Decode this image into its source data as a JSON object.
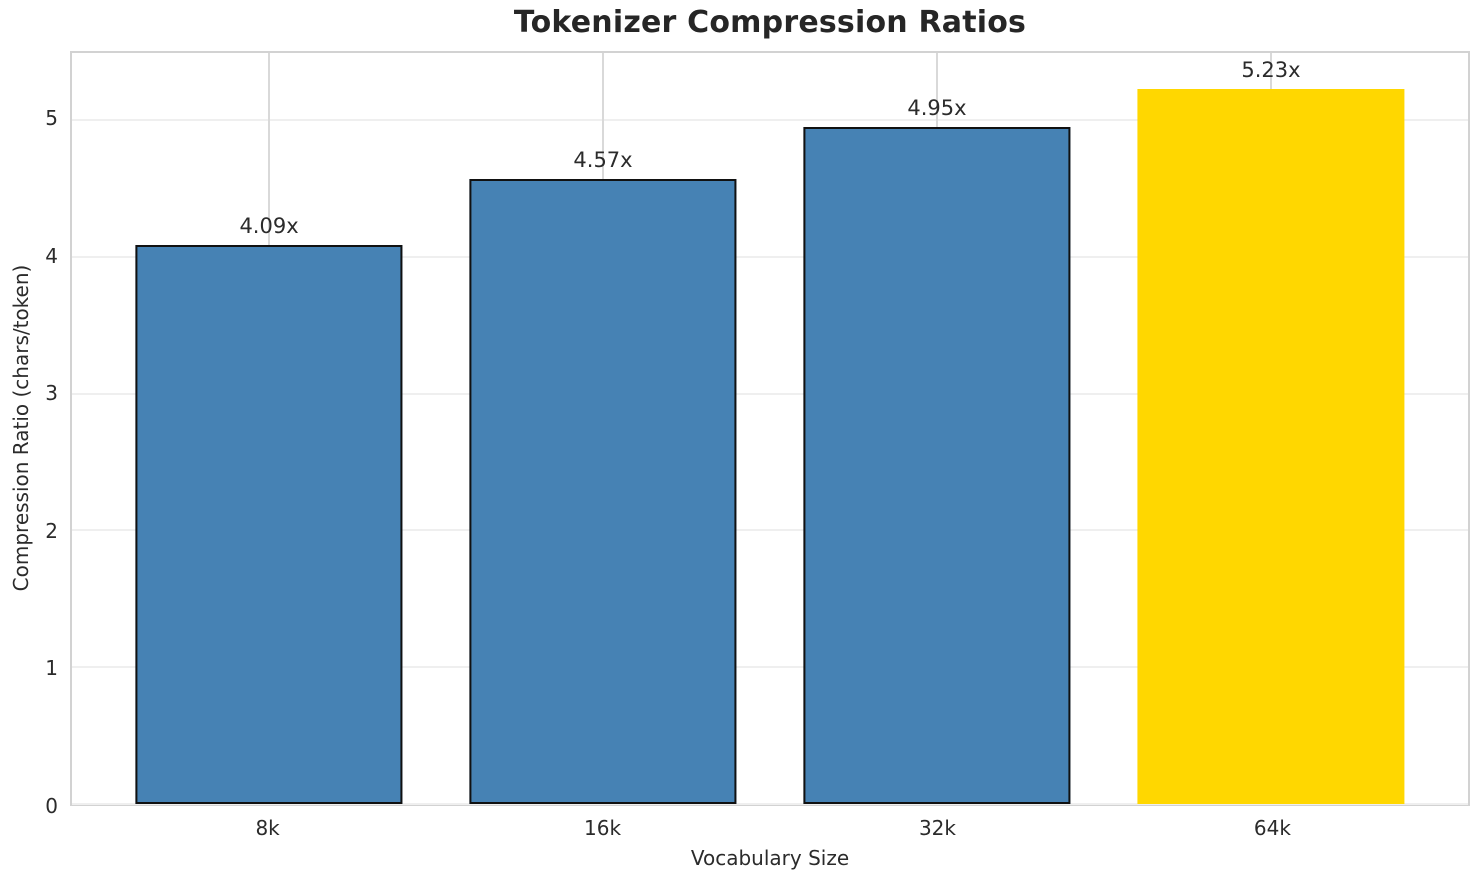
{
  "chart_data": {
    "type": "bar",
    "title": "Tokenizer Compression Ratios",
    "xlabel": "Vocabulary Size",
    "ylabel": "Compression Ratio (chars/token)",
    "categories": [
      "8k",
      "16k",
      "32k",
      "64k"
    ],
    "values": [
      4.09,
      4.57,
      4.95,
      5.23
    ],
    "bar_labels": [
      "4.09x",
      "4.57x",
      "4.95x",
      "5.23x"
    ],
    "bar_colors": [
      "#4682b4",
      "#4682b4",
      "#4682b4",
      "#ffd700"
    ],
    "bar_edge_colors": [
      "#111111",
      "#111111",
      "#111111",
      "none"
    ],
    "highlight_index": 3,
    "yticks": [
      0,
      1,
      2,
      3,
      4,
      5
    ],
    "ylim": [
      0,
      5.49
    ],
    "grid": "both",
    "legend_position": "none",
    "colors": {
      "bar": "#4682b4",
      "highlight": "#ffd700",
      "grid_horizontal": "#efefef",
      "grid_vertical": "#d9d9d9",
      "spine": "#d2d2d2",
      "text": "#262626",
      "background": "#ffffff"
    }
  }
}
